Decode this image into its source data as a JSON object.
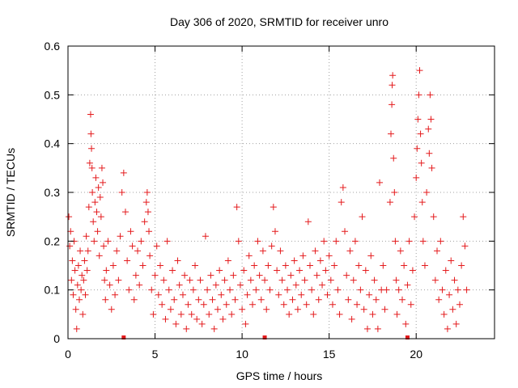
{
  "chart_data": {
    "type": "scatter",
    "title": "Day 306 of 2020, SRMTID for receiver unro",
    "xlabel": "GPS time / hours",
    "ylabel": "SRMTID / TECUs",
    "xlim": [
      0,
      24.5
    ],
    "ylim": [
      0,
      0.6
    ],
    "xticks": [
      "0",
      "5",
      "10",
      "15",
      "20"
    ],
    "xtick_values": [
      0,
      5,
      10,
      15,
      20
    ],
    "yticks": [
      "0",
      "0.1",
      "0.2",
      "0.3",
      "0.4",
      "0.5",
      "0.6"
    ],
    "ytick_values": [
      0,
      0.1,
      0.2,
      0.3,
      0.4,
      0.5,
      0.6
    ],
    "grid": true,
    "marker": "plus",
    "color": "#e41a1c",
    "gap_markers_x": [
      3.2,
      11.3,
      19.5
    ],
    "series": [
      {
        "name": "SRMTID",
        "points": [
          [
            0.05,
            0.25
          ],
          [
            0.1,
            0.19
          ],
          [
            0.15,
            0.22
          ],
          [
            0.2,
            0.12
          ],
          [
            0.25,
            0.16
          ],
          [
            0.3,
            0.09
          ],
          [
            0.35,
            0.2
          ],
          [
            0.4,
            0.14
          ],
          [
            0.45,
            0.06
          ],
          [
            0.5,
            0.02
          ],
          [
            0.55,
            0.11
          ],
          [
            0.6,
            0.15
          ],
          [
            0.65,
            0.08
          ],
          [
            0.7,
            0.18
          ],
          [
            0.75,
            0.1
          ],
          [
            0.8,
            0.13
          ],
          [
            0.85,
            0.05
          ],
          [
            0.9,
            0.12
          ],
          [
            0.95,
            0.16
          ],
          [
            1.0,
            0.09
          ],
          [
            1.05,
            0.21
          ],
          [
            1.1,
            0.14
          ],
          [
            1.15,
            0.18
          ],
          [
            1.2,
            0.27
          ],
          [
            1.25,
            0.36
          ],
          [
            1.3,
            0.46
          ],
          [
            1.32,
            0.42
          ],
          [
            1.35,
            0.39
          ],
          [
            1.38,
            0.35
          ],
          [
            1.4,
            0.3
          ],
          [
            1.45,
            0.24
          ],
          [
            1.5,
            0.2
          ],
          [
            1.55,
            0.28
          ],
          [
            1.6,
            0.33
          ],
          [
            1.65,
            0.26
          ],
          [
            1.7,
            0.22
          ],
          [
            1.75,
            0.31
          ],
          [
            1.8,
            0.17
          ],
          [
            1.85,
            0.29
          ],
          [
            1.9,
            0.25
          ],
          [
            1.95,
            0.35
          ],
          [
            2.0,
            0.32
          ],
          [
            2.05,
            0.19
          ],
          [
            2.1,
            0.12
          ],
          [
            2.15,
            0.08
          ],
          [
            2.2,
            0.14
          ],
          [
            2.3,
            0.2
          ],
          [
            2.4,
            0.11
          ],
          [
            2.5,
            0.06
          ],
          [
            2.6,
            0.15
          ],
          [
            2.7,
            0.09
          ],
          [
            2.8,
            0.18
          ],
          [
            2.9,
            0.12
          ],
          [
            3.0,
            0.21
          ],
          [
            3.1,
            0.3
          ],
          [
            3.2,
            0.34
          ],
          [
            3.3,
            0.26
          ],
          [
            3.4,
            0.16
          ],
          [
            3.5,
            0.1
          ],
          [
            3.6,
            0.22
          ],
          [
            3.7,
            0.19
          ],
          [
            3.8,
            0.08
          ],
          [
            3.9,
            0.13
          ],
          [
            4.0,
            0.18
          ],
          [
            4.1,
            0.11
          ],
          [
            4.2,
            0.2
          ],
          [
            4.3,
            0.15
          ],
          [
            4.4,
            0.24
          ],
          [
            4.5,
            0.28
          ],
          [
            4.55,
            0.3
          ],
          [
            4.6,
            0.26
          ],
          [
            4.65,
            0.22
          ],
          [
            4.7,
            0.17
          ],
          [
            4.8,
            0.1
          ],
          [
            4.9,
            0.05
          ],
          [
            5.0,
            0.13
          ],
          [
            5.1,
            0.19
          ],
          [
            5.2,
            0.09
          ],
          [
            5.3,
            0.15
          ],
          [
            5.4,
            0.07
          ],
          [
            5.5,
            0.12
          ],
          [
            5.6,
            0.04
          ],
          [
            5.7,
            0.2
          ],
          [
            5.8,
            0.1
          ],
          [
            5.9,
            0.06
          ],
          [
            6.0,
            0.14
          ],
          [
            6.1,
            0.08
          ],
          [
            6.2,
            0.03
          ],
          [
            6.3,
            0.16
          ],
          [
            6.4,
            0.11
          ],
          [
            6.5,
            0.05
          ],
          [
            6.6,
            0.09
          ],
          [
            6.7,
            0.13
          ],
          [
            6.8,
            0.02
          ],
          [
            6.9,
            0.07
          ],
          [
            7.0,
            0.12
          ],
          [
            7.1,
            0.05
          ],
          [
            7.2,
            0.1
          ],
          [
            7.3,
            0.15
          ],
          [
            7.4,
            0.04
          ],
          [
            7.5,
            0.08
          ],
          [
            7.6,
            0.12
          ],
          [
            7.7,
            0.03
          ],
          [
            7.8,
            0.07
          ],
          [
            7.9,
            0.21
          ],
          [
            8.0,
            0.1
          ],
          [
            8.1,
            0.05
          ],
          [
            8.2,
            0.13
          ],
          [
            8.3,
            0.08
          ],
          [
            8.4,
            0.02
          ],
          [
            8.5,
            0.11
          ],
          [
            8.6,
            0.06
          ],
          [
            8.7,
            0.14
          ],
          [
            8.8,
            0.09
          ],
          [
            8.9,
            0.04
          ],
          [
            9.0,
            0.12
          ],
          [
            9.1,
            0.07
          ],
          [
            9.2,
            0.16
          ],
          [
            9.3,
            0.1
          ],
          [
            9.4,
            0.05
          ],
          [
            9.5,
            0.13
          ],
          [
            9.6,
            0.08
          ],
          [
            9.7,
            0.27
          ],
          [
            9.8,
            0.2
          ],
          [
            9.9,
            0.11
          ],
          [
            10.0,
            0.06
          ],
          [
            10.1,
            0.14
          ],
          [
            10.2,
            0.03
          ],
          [
            10.3,
            0.09
          ],
          [
            10.4,
            0.17
          ],
          [
            10.5,
            0.12
          ],
          [
            10.6,
            0.07
          ],
          [
            10.7,
            0.15
          ],
          [
            10.8,
            0.1
          ],
          [
            10.9,
            0.2
          ],
          [
            11.0,
            0.13
          ],
          [
            11.1,
            0.08
          ],
          [
            11.2,
            0.18
          ],
          [
            11.3,
            0.12
          ],
          [
            11.4,
            0.06
          ],
          [
            11.5,
            0.15
          ],
          [
            11.6,
            0.1
          ],
          [
            11.7,
            0.19
          ],
          [
            11.8,
            0.27
          ],
          [
            11.9,
            0.22
          ],
          [
            12.0,
            0.14
          ],
          [
            12.1,
            0.09
          ],
          [
            12.2,
            0.18
          ],
          [
            12.3,
            0.12
          ],
          [
            12.4,
            0.07
          ],
          [
            12.5,
            0.15
          ],
          [
            12.6,
            0.1
          ],
          [
            12.7,
            0.05
          ],
          [
            12.8,
            0.13
          ],
          [
            12.9,
            0.08
          ],
          [
            13.0,
            0.16
          ],
          [
            13.1,
            0.11
          ],
          [
            13.2,
            0.06
          ],
          [
            13.3,
            0.14
          ],
          [
            13.4,
            0.09
          ],
          [
            13.5,
            0.17
          ],
          [
            13.6,
            0.12
          ],
          [
            13.7,
            0.07
          ],
          [
            13.8,
            0.24
          ],
          [
            13.9,
            0.15
          ],
          [
            14.0,
            0.1
          ],
          [
            14.1,
            0.05
          ],
          [
            14.2,
            0.18
          ],
          [
            14.3,
            0.13
          ],
          [
            14.4,
            0.08
          ],
          [
            14.5,
            0.16
          ],
          [
            14.6,
            0.11
          ],
          [
            14.7,
            0.2
          ],
          [
            14.8,
            0.14
          ],
          [
            14.9,
            0.09
          ],
          [
            15.0,
            0.17
          ],
          [
            15.1,
            0.12
          ],
          [
            15.2,
            0.07
          ],
          [
            15.3,
            0.15
          ],
          [
            15.4,
            0.2
          ],
          [
            15.5,
            0.1
          ],
          [
            15.6,
            0.05
          ],
          [
            15.7,
            0.28
          ],
          [
            15.8,
            0.31
          ],
          [
            15.9,
            0.22
          ],
          [
            16.0,
            0.13
          ],
          [
            16.1,
            0.08
          ],
          [
            16.2,
            0.18
          ],
          [
            16.3,
            0.04
          ],
          [
            16.4,
            0.12
          ],
          [
            16.5,
            0.2
          ],
          [
            16.6,
            0.07
          ],
          [
            16.7,
            0.15
          ],
          [
            16.8,
            0.1
          ],
          [
            16.9,
            0.25
          ],
          [
            17.0,
            0.06
          ],
          [
            17.1,
            0.14
          ],
          [
            17.2,
            0.02
          ],
          [
            17.3,
            0.09
          ],
          [
            17.4,
            0.17
          ],
          [
            17.5,
            0.05
          ],
          [
            17.6,
            0.12
          ],
          [
            17.7,
            0.08
          ],
          [
            17.8,
            0.02
          ],
          [
            17.9,
            0.32
          ],
          [
            18.0,
            0.1
          ],
          [
            18.1,
            0.15
          ],
          [
            18.2,
            0.06
          ],
          [
            18.3,
            0.1
          ],
          [
            18.5,
            0.28
          ],
          [
            18.55,
            0.42
          ],
          [
            18.6,
            0.48
          ],
          [
            18.62,
            0.52
          ],
          [
            18.65,
            0.54
          ],
          [
            18.7,
            0.37
          ],
          [
            18.75,
            0.3
          ],
          [
            18.8,
            0.2
          ],
          [
            18.85,
            0.12
          ],
          [
            18.9,
            0.05
          ],
          [
            19.0,
            0.1
          ],
          [
            19.1,
            0.18
          ],
          [
            19.2,
            0.08
          ],
          [
            19.3,
            0.15
          ],
          [
            19.4,
            0.03
          ],
          [
            19.5,
            0.11
          ],
          [
            19.6,
            0.2
          ],
          [
            19.7,
            0.07
          ],
          [
            19.8,
            0.14
          ],
          [
            19.9,
            0.25
          ],
          [
            20.0,
            0.33
          ],
          [
            20.05,
            0.39
          ],
          [
            20.1,
            0.45
          ],
          [
            20.15,
            0.5
          ],
          [
            20.2,
            0.55
          ],
          [
            20.25,
            0.42
          ],
          [
            20.3,
            0.36
          ],
          [
            20.35,
            0.28
          ],
          [
            20.4,
            0.2
          ],
          [
            20.5,
            0.15
          ],
          [
            20.6,
            0.3
          ],
          [
            20.7,
            0.43
          ],
          [
            20.75,
            0.38
          ],
          [
            20.8,
            0.5
          ],
          [
            20.85,
            0.45
          ],
          [
            20.9,
            0.35
          ],
          [
            21.0,
            0.25
          ],
          [
            21.1,
            0.12
          ],
          [
            21.2,
            0.18
          ],
          [
            21.3,
            0.08
          ],
          [
            21.4,
            0.2
          ],
          [
            21.5,
            0.1
          ],
          [
            21.6,
            0.05
          ],
          [
            21.7,
            0.14
          ],
          [
            21.8,
            0.02
          ],
          [
            21.9,
            0.09
          ],
          [
            22.0,
            0.16
          ],
          [
            22.1,
            0.06
          ],
          [
            22.2,
            0.12
          ],
          [
            22.3,
            0.03
          ],
          [
            22.4,
            0.1
          ],
          [
            22.5,
            0.07
          ],
          [
            22.6,
            0.15
          ],
          [
            22.7,
            0.25
          ],
          [
            22.8,
            0.19
          ],
          [
            22.9,
            0.1
          ]
        ]
      }
    ]
  }
}
